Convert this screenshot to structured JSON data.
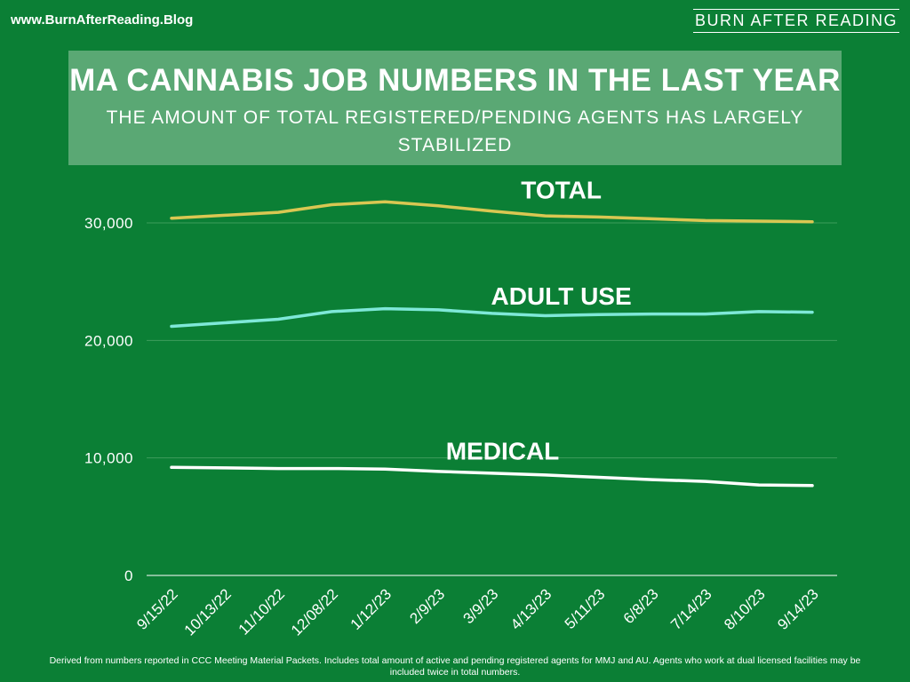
{
  "header": {
    "site_url": "www.BurnAfterReading.Blog",
    "brand": "BURN AFTER READING"
  },
  "footnote": "Derived from numbers reported in CCC Meeting Material Packets.  Includes total amount of active and pending registered agents for MMJ and AU. Agents who work at dual licensed facilities may be included twice in total numbers.",
  "chart_data": {
    "type": "line",
    "title": "MA CANNABIS JOB NUMBERS IN THE LAST YEAR",
    "subtitle": "THE AMOUNT OF TOTAL REGISTERED/PENDING AGENTS HAS LARGELY STABILIZED",
    "categories": [
      "9/15/22",
      "10/13/22",
      "11/10/22",
      "12/08/22",
      "1/12/23",
      "2/9/23",
      "3/9/23",
      "4/13/23",
      "5/11/23",
      "6/8/23",
      "7/14/23",
      "8/10/23",
      "9/14/23"
    ],
    "ylim": [
      0,
      35000
    ],
    "yticks": [
      0,
      10000,
      20000,
      30000
    ],
    "ytick_labels": [
      "0",
      "10,000",
      "20,000",
      "30,000"
    ],
    "grid": true,
    "legend": "none",
    "series": [
      {
        "name": "TOTAL",
        "color": "#d9c752",
        "values": [
          30400,
          30650,
          30900,
          31550,
          31800,
          31450,
          31000,
          30600,
          30500,
          30350,
          30200,
          30150,
          30100
        ]
      },
      {
        "name": "ADULT USE",
        "color": "#7ee8d8",
        "values": [
          21200,
          21500,
          21800,
          22450,
          22700,
          22600,
          22300,
          22100,
          22200,
          22250,
          22250,
          22450,
          22400
        ]
      },
      {
        "name": "MEDICAL",
        "color": "#ffffff",
        "values": [
          9200,
          9150,
          9100,
          9100,
          9050,
          8850,
          8700,
          8550,
          8350,
          8150,
          8000,
          7700,
          7650
        ]
      }
    ]
  }
}
